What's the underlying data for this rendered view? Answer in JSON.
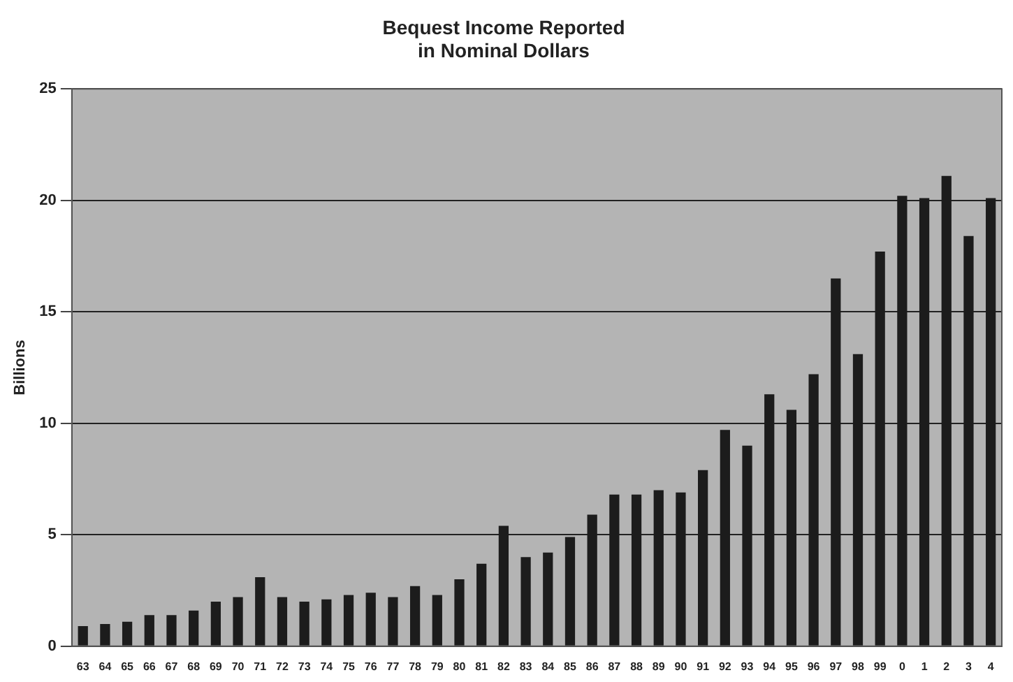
{
  "chart_data": {
    "type": "bar",
    "title": "Bequest Income Reported\nin Nominal Dollars",
    "ylabel": "Billions",
    "categories": [
      "63",
      "64",
      "65",
      "66",
      "67",
      "68",
      "69",
      "70",
      "71",
      "72",
      "73",
      "74",
      "75",
      "76",
      "77",
      "78",
      "79",
      "80",
      "81",
      "82",
      "83",
      "84",
      "85",
      "86",
      "87",
      "88",
      "89",
      "90",
      "91",
      "92",
      "93",
      "94",
      "95",
      "96",
      "97",
      "98",
      "99",
      "0",
      "1",
      "2",
      "3",
      "4"
    ],
    "values": [
      0.9,
      1.0,
      1.1,
      1.4,
      1.4,
      1.6,
      2.0,
      2.2,
      3.1,
      2.2,
      2.0,
      2.1,
      2.3,
      2.4,
      2.2,
      2.7,
      2.3,
      3.0,
      3.7,
      5.4,
      4.0,
      4.2,
      4.9,
      5.9,
      6.8,
      6.8,
      7.0,
      6.9,
      7.9,
      9.7,
      9.0,
      11.3,
      10.6,
      12.2,
      16.5,
      13.1,
      17.7,
      20.2,
      20.1,
      21.1,
      18.4,
      20.1
    ],
    "color": "#1c1c1c",
    "ylim": [
      0,
      25
    ],
    "yticks": [
      0,
      5,
      10,
      15,
      20,
      25
    ],
    "grid": "y",
    "legend": false
  }
}
